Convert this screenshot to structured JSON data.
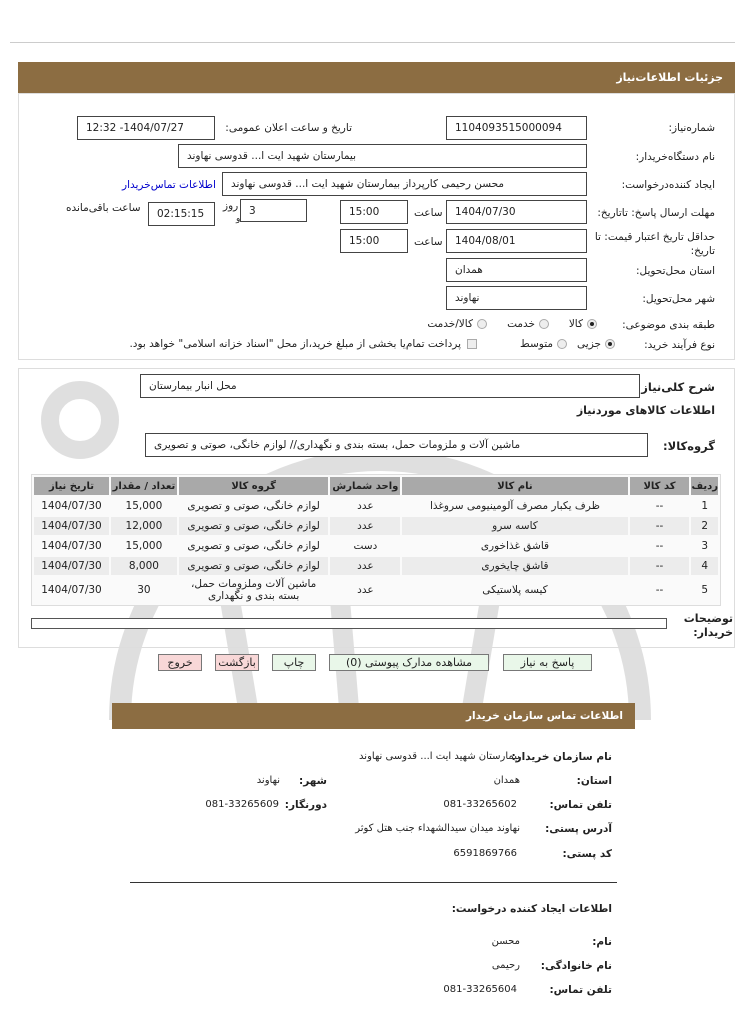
{
  "header": {
    "title": "جزئیات اطلاعات‌نیاز"
  },
  "colors": {
    "header_bar": "#8c6d42",
    "link": "#0000cc",
    "exit_button": "#f8d7d7",
    "action_button": "#e9f7e9"
  },
  "form": {
    "need_number_label": "شماره‌نیاز:",
    "need_number": "1104093515000094",
    "announce_label": "تاریخ و ساعت اعلان عمومی:",
    "announce_value": "1404/07/27- 12:32",
    "buyer_label": "نام دستگاه‌خریدار:",
    "buyer_value": "بیمارستان شهید ایت ا... قدوسی نهاوند",
    "creator_label": "ایجاد کننده‌درخواست:",
    "creator_value": "محسن رحیمی کارپرداز بیمارستان شهید ایت ا... قدوسی نهاوند",
    "contact_link": "اطلاعات تماس‌خریدار",
    "deadline_label": "مهلت ارسال پاسخ: تاتاریخ:",
    "deadline_date": "1404/07/30",
    "time_label": "ساعت",
    "deadline_time": "15:00",
    "days_value": "3",
    "days_label": "روز",
    "and_label": "و",
    "remaining_value": "02:15:15",
    "remaining_label": "ساعت باقی‌مانده",
    "validity_label": "حداقل تاریخ اعتبار قیمت: تا تاریخ:",
    "validity_date": "1404/08/01",
    "validity_time": "15:00",
    "province_label": "استان محل‌تحویل:",
    "province_value": "همدان",
    "city_label": "شهر محل‌تحویل:",
    "city_value": "نهاوند",
    "category_label": "طبقه بندی موضوعی:",
    "category_options": [
      "کالا",
      "خدمت",
      "کالا/خدمت"
    ],
    "category_selected": "کالا",
    "process_label": "نوع فرآیند خرید:",
    "process_options": [
      "جزیی",
      "متوسط"
    ],
    "process_selected": "جزیی",
    "payment_note": "پرداخت تمام‌یا بخشی از مبلغ خرید،از محل \"اسناد خزانه اسلامی\" خواهد بود."
  },
  "goods": {
    "desc_label": "شرح کلی‌نیاز:",
    "desc_value": "محل انبار بیمارستان",
    "section_title": "اطلاعات  کالاهای موردنیاز",
    "group_label": "گروه‌کالا:",
    "group_value": "ماشین آلات و ملزومات حمل، بسته بندی و نگهداری// لوازم خانگی، صوتی و تصویری",
    "columns": [
      "ردیف",
      "کد کالا",
      "نام کالا",
      "واحد شمارش",
      "گروه کالا",
      "تعداد / مقدار",
      "تاریخ نیاز"
    ],
    "rows": [
      [
        "1",
        "--",
        "ظرف یکبار مصرف آلومینیومی سروغذا",
        "عدد",
        "لوازم خانگی، صوتی و تصویری",
        "15,000",
        "1404/07/30"
      ],
      [
        "2",
        "--",
        "کاسه سرو",
        "عدد",
        "لوازم خانگی، صوتی و تصویری",
        "12,000",
        "1404/07/30"
      ],
      [
        "3",
        "--",
        "قاشق غذاخوری",
        "دست",
        "لوازم خانگی، صوتی و تصویری",
        "15,000",
        "1404/07/30"
      ],
      [
        "4",
        "--",
        "قاشق چایخوری",
        "عدد",
        "لوازم خانگی، صوتی و تصویری",
        "8,000",
        "1404/07/30"
      ],
      [
        "5",
        "--",
        "کیسه پلاستیکی",
        "عدد",
        "ماشین آلات وملزومات حمل، بسته بندی و نگهداری",
        "30",
        "1404/07/30"
      ]
    ],
    "notes_label": "توضیحات خریدار:",
    "notes_value": ""
  },
  "buttons": {
    "reply": "پاسخ به نیاز",
    "attachments": "مشاهده مدارک پیوستی (0)",
    "print": "چاپ",
    "back": "بازگشت",
    "exit": "خروج"
  },
  "contact": {
    "title": "اطلاعات تماس  سازمان خریدار",
    "org_label": "نام سازمان خریدار:",
    "org_value": "بیمارستان شهید ایت ا... قدوسی نهاوند",
    "province_label": "استان:",
    "province_value": "همدان",
    "city_label": "شهر:",
    "city_value": "نهاوند",
    "phone_label": "تلفن تماس:",
    "phone_value": "081-33265602",
    "fax_label": "دورنگار:",
    "fax_value": "081-33265609",
    "address_label": "آدرس پستی:",
    "address_value": "نهاوند میدان سیدالشهداء جنب هتل کوثر",
    "postal_label": "کد پستی:",
    "postal_value": "6591869766",
    "creator_title": "اطلاعات ایجاد کننده درخواست:",
    "name_label": "نام:",
    "name_value": "محسن",
    "family_label": "نام خانوادگی:",
    "family_value": "رحیمی",
    "creator_phone_label": "تلفن تماس:",
    "creator_phone_value": "081-33265604"
  }
}
